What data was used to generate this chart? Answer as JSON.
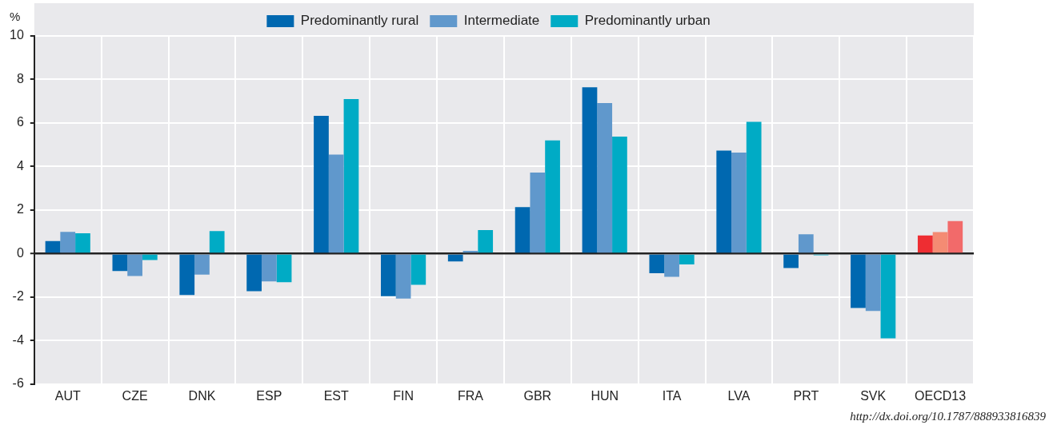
{
  "chart_data": {
    "type": "bar",
    "ylabel": "%",
    "categories": [
      "AUT",
      "CZE",
      "DNK",
      "ESP",
      "EST",
      "FIN",
      "FRA",
      "GBR",
      "HUN",
      "ITA",
      "LVA",
      "PRT",
      "SVK",
      "OECD13"
    ],
    "series": [
      {
        "name": "Predominantly rural",
        "color": "#0068b0",
        "colors": [
          "#0068b0",
          "#0068b0",
          "#0068b0",
          "#0068b0",
          "#0068b0",
          "#0068b0",
          "#0068b0",
          "#0068b0",
          "#0068b0",
          "#0068b0",
          "#0068b0",
          "#0068b0",
          "#0068b0",
          "#ee2d32"
        ],
        "values": [
          0.57,
          -0.8,
          -1.9,
          -1.73,
          6.33,
          -1.96,
          -0.36,
          2.13,
          7.64,
          -0.9,
          4.73,
          -0.67,
          -2.5,
          0.83
        ]
      },
      {
        "name": "Intermediate",
        "color": "#6098cc",
        "colors": [
          "#6098cc",
          "#6098cc",
          "#6098cc",
          "#6098cc",
          "#6098cc",
          "#6098cc",
          "#6098cc",
          "#6098cc",
          "#6098cc",
          "#6098cc",
          "#6098cc",
          "#6098cc",
          "#6098cc",
          "#f48b73"
        ],
        "values": [
          1.0,
          -1.03,
          -0.97,
          -1.28,
          4.55,
          -2.07,
          0.12,
          3.72,
          6.92,
          -1.07,
          4.64,
          0.89,
          -2.64,
          0.99
        ]
      },
      {
        "name": "Predominantly urban",
        "color": "#00abc5",
        "colors": [
          "#00abc5",
          "#00abc5",
          "#00abc5",
          "#00abc5",
          "#00abc5",
          "#00abc5",
          "#00abc5",
          "#00abc5",
          "#00abc5",
          "#00abc5",
          "#00abc5",
          "#00abc5",
          "#00abc5",
          "#f26a6a"
        ],
        "values": [
          0.93,
          -0.3,
          1.03,
          -1.32,
          7.1,
          -1.44,
          1.08,
          5.2,
          5.37,
          -0.5,
          6.05,
          -0.08,
          -3.9,
          1.49
        ]
      }
    ],
    "ylim": [
      -6,
      10
    ],
    "yticks": [
      -6,
      -4,
      -2,
      0,
      2,
      4,
      6,
      8,
      10
    ],
    "grid": true,
    "legend": "top",
    "annotations": [
      "http://dx.doi.org/10.1787/888933816839"
    ]
  }
}
